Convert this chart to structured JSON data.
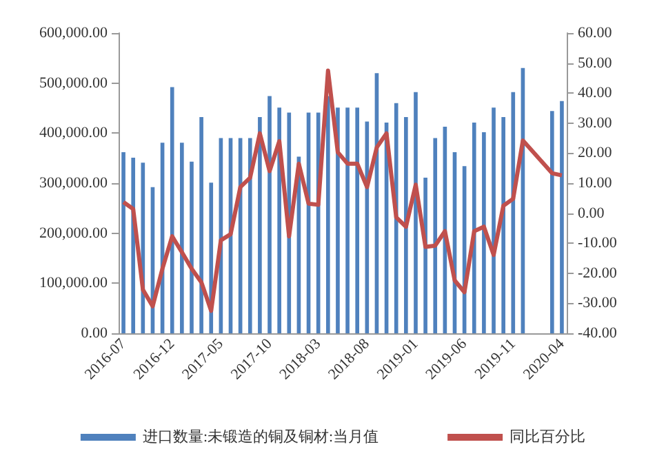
{
  "chart_data": {
    "type": "bar",
    "categories": [
      "2016-07",
      null,
      null,
      null,
      null,
      "2016-12",
      null,
      null,
      null,
      null,
      "2017-05",
      null,
      null,
      null,
      null,
      "2017-10",
      null,
      null,
      null,
      null,
      "2018-03",
      null,
      null,
      null,
      null,
      "2018-08",
      null,
      null,
      null,
      null,
      "2019-01",
      null,
      null,
      null,
      null,
      "2019-06",
      null,
      null,
      null,
      null,
      "2019-11",
      null,
      null,
      null,
      null,
      "2020-04"
    ],
    "series": [
      {
        "name": "进口数量:未锻造的铜及铜材:当月值",
        "color": "#4f81bd",
        "values": [
          362000,
          351000,
          341000,
          292000,
          381000,
          492000,
          381000,
          343000,
          432000,
          301000,
          390000,
          390000,
          390000,
          390000,
          432000,
          474000,
          451000,
          441000,
          353000,
          441000,
          441000,
          474000,
          451000,
          451000,
          451000,
          423000,
          520000,
          421000,
          460000,
          432000,
          482000,
          311000,
          390000,
          413000,
          362000,
          334000,
          421000,
          402000,
          451000,
          432000,
          482000,
          530000,
          null,
          null,
          444000,
          464000
        ]
      },
      {
        "name": "同比百分比",
        "type": "line",
        "axis": "y2",
        "color": "#c0504d",
        "values": [
          3.7,
          1.4,
          -25.5,
          -31,
          -18.5,
          -7.7,
          -13,
          -18.5,
          -23,
          -32.5,
          -9,
          -7,
          8.7,
          11.8,
          26.6,
          14,
          24,
          -7.7,
          16.5,
          3.2,
          2.8,
          47.5,
          20.3,
          16.5,
          16.5,
          8.7,
          21.9,
          26.6,
          -1.4,
          -4.5,
          9.5,
          -11.2,
          -10.8,
          -6,
          -22.4,
          -26.3,
          -6,
          -4.5,
          -13.9,
          2.5,
          4.8,
          24.2,
          null,
          null,
          13.3,
          12.6
        ]
      }
    ],
    "ylim": [
      0,
      600000
    ],
    "yticks": [
      {
        "value": 0,
        "label": "0.00"
      },
      {
        "value": 100000,
        "label": "100,000.00"
      },
      {
        "value": 200000,
        "label": "200,000.00"
      },
      {
        "value": 300000,
        "label": "300,000.00"
      },
      {
        "value": 400000,
        "label": "400,000.00"
      },
      {
        "value": 500000,
        "label": "500,000.00"
      },
      {
        "value": 600000,
        "label": "600,000.00"
      }
    ],
    "y2lim": [
      -40,
      60
    ],
    "y2ticks": [
      {
        "value": -40,
        "label": "-40.00"
      },
      {
        "value": -30,
        "label": "-30.00"
      },
      {
        "value": -20,
        "label": "-20.00"
      },
      {
        "value": -10,
        "label": "-10.00"
      },
      {
        "value": 0,
        "label": "0.00"
      },
      {
        "value": 10,
        "label": "10.00"
      },
      {
        "value": 20,
        "label": "20.00"
      },
      {
        "value": 30,
        "label": "30.00"
      },
      {
        "value": 40,
        "label": "40.00"
      },
      {
        "value": 50,
        "label": "50.00"
      },
      {
        "value": 60,
        "label": "60.00"
      }
    ],
    "grid": false,
    "legend": "bottom",
    "marker": "none"
  }
}
